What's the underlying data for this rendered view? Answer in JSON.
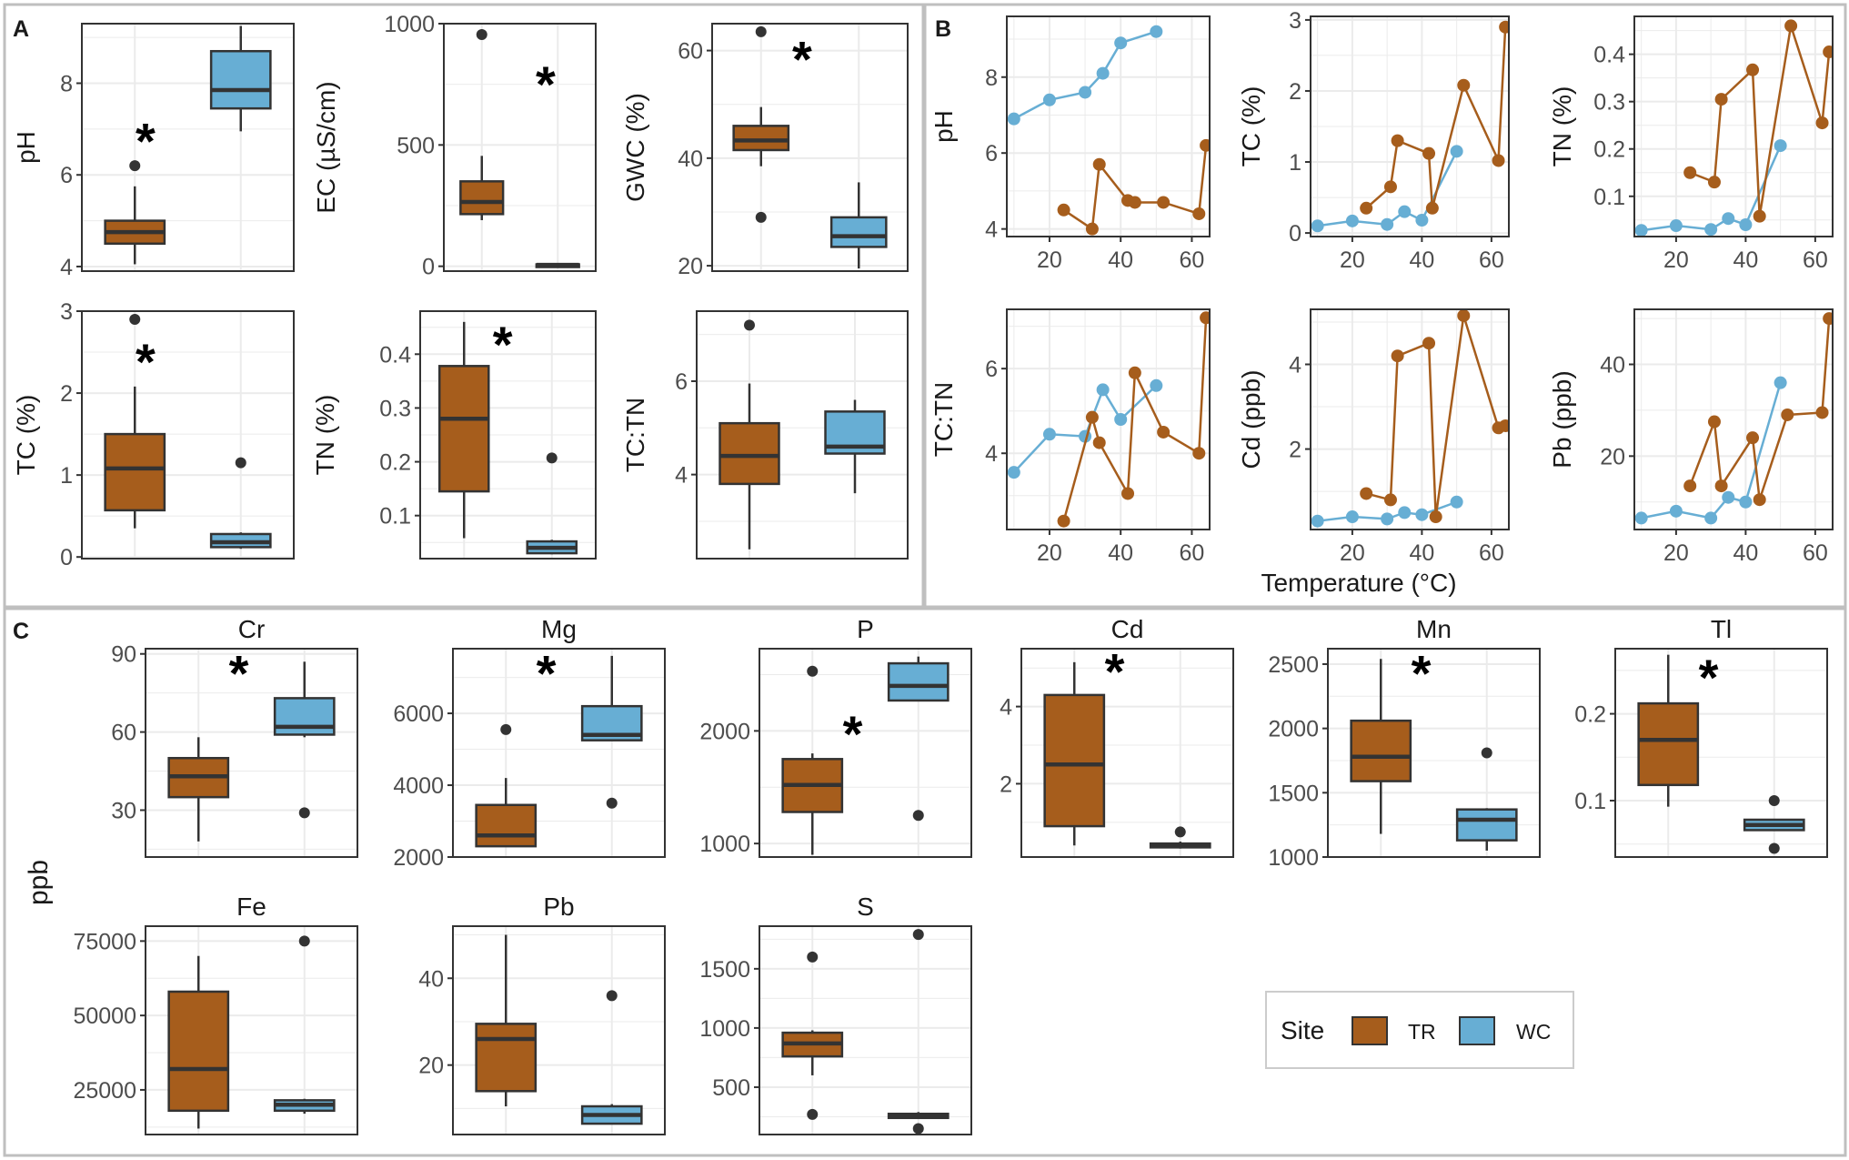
{
  "colors": {
    "TR": "#A65D1C",
    "WC": "#67AED4",
    "panel_border": "#333333",
    "grid": "#EBEBEB",
    "box_outline": "#333333",
    "text": "#1a1a1a",
    "axis_text": "#4D4D4D",
    "frame": "#BFBFBF"
  },
  "panel_labels": {
    "A": "A",
    "B": "B",
    "C": "C"
  },
  "shared_labels": {
    "ppb": "ppb",
    "temperature": "Temperature (°C)"
  },
  "legend": {
    "title": "Site",
    "items": [
      {
        "key": "TR",
        "label": "TR"
      },
      {
        "key": "WC",
        "label": "WC"
      }
    ]
  },
  "chart_data": [
    {
      "id": "A-pH",
      "type": "box",
      "ylabel": "pH",
      "ylim": [
        3.9,
        9.3
      ],
      "yticks": [
        4,
        6,
        8
      ],
      "significant": true,
      "boxes": [
        {
          "site": "TR",
          "min": 4.05,
          "q1": 4.5,
          "median": 4.75,
          "q3": 5.0,
          "max": 5.75,
          "outliers": [
            6.2
          ]
        },
        {
          "site": "WC",
          "min": 6.95,
          "q1": 7.45,
          "median": 7.85,
          "q3": 8.7,
          "max": 9.25,
          "outliers": []
        }
      ]
    },
    {
      "id": "A-EC",
      "type": "box",
      "ylabel": "EC (µS/cm)",
      "ylim": [
        -20,
        1000
      ],
      "yticks": [
        0,
        500,
        1000
      ],
      "significant": true,
      "boxes": [
        {
          "site": "TR",
          "min": 190,
          "q1": 215,
          "median": 265,
          "q3": 350,
          "max": 455,
          "outliers": [
            955
          ]
        },
        {
          "site": "WC",
          "min": 2,
          "q1": 4,
          "median": 6,
          "q3": 8,
          "max": 10,
          "outliers": []
        }
      ]
    },
    {
      "id": "A-GWC",
      "type": "box",
      "ylabel": "GWC (%)",
      "ylim": [
        19,
        65
      ],
      "yticks": [
        20,
        40,
        60
      ],
      "significant": true,
      "boxes": [
        {
          "site": "TR",
          "min": 38.5,
          "q1": 41.5,
          "median": 43.3,
          "q3": 46.0,
          "max": 49.5,
          "outliers": [
            63.5,
            29.0
          ]
        },
        {
          "site": "WC",
          "min": 19.5,
          "q1": 23.5,
          "median": 25.5,
          "q3": 29.0,
          "max": 35.5,
          "outliers": []
        }
      ]
    },
    {
      "id": "A-TC",
      "type": "box",
      "ylabel": "TC (%)",
      "ylim": [
        -0.02,
        3.0
      ],
      "yticks": [
        0,
        1,
        2,
        3
      ],
      "significant": true,
      "boxes": [
        {
          "site": "TR",
          "min": 0.35,
          "q1": 0.57,
          "median": 1.08,
          "q3": 1.5,
          "max": 2.08,
          "outliers": [
            2.9
          ]
        },
        {
          "site": "WC",
          "min": 0.1,
          "q1": 0.12,
          "median": 0.18,
          "q3": 0.28,
          "max": 0.3,
          "outliers": [
            1.15
          ]
        }
      ]
    },
    {
      "id": "A-TN",
      "type": "box",
      "ylabel": "TN (%)",
      "ylim": [
        0.02,
        0.48
      ],
      "yticks": [
        0.1,
        0.2,
        0.3,
        0.4
      ],
      "significant": true,
      "boxes": [
        {
          "site": "TR",
          "min": 0.058,
          "q1": 0.145,
          "median": 0.28,
          "q3": 0.378,
          "max": 0.46,
          "outliers": []
        },
        {
          "site": "WC",
          "min": 0.028,
          "q1": 0.03,
          "median": 0.04,
          "q3": 0.052,
          "max": 0.055,
          "outliers": [
            0.207
          ]
        }
      ]
    },
    {
      "id": "A-TCTN",
      "type": "box",
      "ylabel": "TC:TN",
      "ylim": [
        2.2,
        7.5
      ],
      "yticks": [
        4,
        6
      ],
      "significant": false,
      "boxes": [
        {
          "site": "TR",
          "min": 2.4,
          "q1": 3.8,
          "median": 4.4,
          "q3": 5.1,
          "max": 5.95,
          "outliers": [
            7.2
          ]
        },
        {
          "site": "WC",
          "min": 3.6,
          "q1": 4.45,
          "median": 4.6,
          "q3": 5.35,
          "max": 5.6,
          "outliers": []
        }
      ]
    },
    {
      "id": "B-pH",
      "type": "line",
      "ylabel": "pH",
      "xlim": [
        8,
        65
      ],
      "ylim": [
        3.8,
        9.6
      ],
      "xticks": [
        20,
        40,
        60
      ],
      "yticks": [
        4,
        6,
        8
      ],
      "series": [
        {
          "name": "WC",
          "x": [
            10,
            20,
            30,
            35,
            40,
            50
          ],
          "y": [
            6.9,
            7.4,
            7.6,
            8.1,
            8.9,
            9.2
          ]
        },
        {
          "name": "TR",
          "x": [
            24,
            32,
            34,
            42,
            44,
            52,
            62,
            64
          ],
          "y": [
            4.5,
            4.0,
            5.7,
            4.75,
            4.7,
            4.7,
            4.4,
            6.2
          ]
        }
      ]
    },
    {
      "id": "B-TC",
      "type": "line",
      "ylabel": "TC (%)",
      "xlim": [
        8,
        65
      ],
      "ylim": [
        -0.05,
        3.05
      ],
      "xticks": [
        20,
        40,
        60
      ],
      "yticks": [
        0,
        1,
        2,
        3
      ],
      "series": [
        {
          "name": "WC",
          "x": [
            10,
            20,
            30,
            35,
            40,
            50
          ],
          "y": [
            0.1,
            0.17,
            0.12,
            0.3,
            0.18,
            1.15
          ]
        },
        {
          "name": "TR",
          "x": [
            24,
            31,
            33,
            42,
            43,
            52,
            62,
            64
          ],
          "y": [
            0.35,
            0.65,
            1.3,
            1.12,
            0.35,
            2.08,
            1.02,
            2.9
          ]
        }
      ]
    },
    {
      "id": "B-TN",
      "type": "line",
      "ylabel": "TN (%)",
      "xlim": [
        8,
        65
      ],
      "ylim": [
        0.015,
        0.48
      ],
      "xticks": [
        20,
        40,
        60
      ],
      "yticks": [
        0.1,
        0.2,
        0.3,
        0.4
      ],
      "series": [
        {
          "name": "WC",
          "x": [
            10,
            20,
            30,
            35,
            40,
            50
          ],
          "y": [
            0.028,
            0.038,
            0.03,
            0.053,
            0.04,
            0.207
          ]
        },
        {
          "name": "TR",
          "x": [
            24,
            31,
            33,
            42,
            44,
            53,
            62,
            64
          ],
          "y": [
            0.15,
            0.13,
            0.305,
            0.367,
            0.058,
            0.46,
            0.255,
            0.405
          ]
        }
      ]
    },
    {
      "id": "B-TCTN",
      "type": "line",
      "ylabel": "TC:TN",
      "xlim": [
        8,
        65
      ],
      "ylim": [
        2.2,
        7.4
      ],
      "xticks": [
        20,
        40,
        60
      ],
      "yticks": [
        4,
        6
      ],
      "series": [
        {
          "name": "WC",
          "x": [
            10,
            20,
            30,
            35,
            40,
            50
          ],
          "y": [
            3.55,
            4.45,
            4.4,
            5.5,
            4.8,
            5.6
          ]
        },
        {
          "name": "TR",
          "x": [
            24,
            32,
            34,
            42,
            44,
            52,
            62,
            64
          ],
          "y": [
            2.4,
            4.85,
            4.25,
            3.05,
            5.9,
            4.5,
            4.0,
            7.2
          ]
        }
      ]
    },
    {
      "id": "B-Cd",
      "type": "line",
      "ylabel": "Cd (ppb)",
      "xlim": [
        8,
        65
      ],
      "ylim": [
        0.1,
        5.3
      ],
      "xticks": [
        20,
        40,
        60
      ],
      "yticks": [
        2,
        4
      ],
      "series": [
        {
          "name": "WC",
          "x": [
            10,
            20,
            30,
            35,
            40,
            50
          ],
          "y": [
            0.3,
            0.4,
            0.35,
            0.5,
            0.45,
            0.75
          ]
        },
        {
          "name": "TR",
          "x": [
            24,
            31,
            33,
            42,
            44,
            52,
            62,
            64
          ],
          "y": [
            0.95,
            0.8,
            4.2,
            4.5,
            0.4,
            5.15,
            2.5,
            2.55
          ]
        }
      ]
    },
    {
      "id": "B-Pb",
      "type": "line",
      "ylabel": "Pb (ppb)",
      "xlim": [
        8,
        65
      ],
      "ylim": [
        4,
        52
      ],
      "xticks": [
        20,
        40,
        60
      ],
      "yticks": [
        20,
        40
      ],
      "series": [
        {
          "name": "WC",
          "x": [
            10,
            20,
            30,
            35,
            40,
            50
          ],
          "y": [
            6.5,
            8.0,
            6.5,
            11.0,
            10.0,
            36.0
          ]
        },
        {
          "name": "TR",
          "x": [
            24,
            31,
            33,
            42,
            44,
            52,
            62,
            64
          ],
          "y": [
            13.5,
            27.5,
            13.5,
            24.0,
            10.5,
            29.0,
            29.5,
            50.0
          ]
        }
      ]
    },
    {
      "id": "C-Cr",
      "type": "box",
      "title": "Cr",
      "ylim": [
        12,
        92
      ],
      "yticks": [
        30,
        60,
        90
      ],
      "significant": true,
      "boxes": [
        {
          "site": "TR",
          "min": 18,
          "q1": 35,
          "median": 43,
          "q3": 50,
          "max": 58,
          "outliers": []
        },
        {
          "site": "WC",
          "min": 58,
          "q1": 59,
          "median": 62,
          "q3": 73,
          "max": 87,
          "outliers": [
            29
          ]
        }
      ]
    },
    {
      "id": "C-Mg",
      "type": "box",
      "title": "Mg",
      "ylim": [
        2000,
        7800
      ],
      "yticks": [
        2000,
        4000,
        6000
      ],
      "significant": true,
      "boxes": [
        {
          "site": "TR",
          "min": 2300,
          "q1": 2300,
          "median": 2600,
          "q3": 3450,
          "max": 4200,
          "outliers": [
            5550
          ]
        },
        {
          "site": "WC",
          "min": 5250,
          "q1": 5250,
          "median": 5400,
          "q3": 6200,
          "max": 7600,
          "outliers": [
            3500
          ]
        }
      ]
    },
    {
      "id": "C-P",
      "type": "box",
      "title": "P",
      "ylim": [
        880,
        2730
      ],
      "yticks": [
        1000,
        2000
      ],
      "significant": true,
      "boxes": [
        {
          "site": "TR",
          "min": 900,
          "q1": 1280,
          "median": 1520,
          "q3": 1750,
          "max": 1800,
          "outliers": [
            2530
          ]
        },
        {
          "site": "WC",
          "min": 2270,
          "q1": 2270,
          "median": 2400,
          "q3": 2600,
          "max": 2660,
          "outliers": [
            1250
          ]
        }
      ]
    },
    {
      "id": "C-Cd",
      "type": "box",
      "title": "Cd",
      "ylim": [
        0.1,
        5.5
      ],
      "yticks": [
        2,
        4
      ],
      "significant": true,
      "boxes": [
        {
          "site": "TR",
          "min": 0.4,
          "q1": 0.9,
          "median": 2.5,
          "q3": 4.3,
          "max": 5.15,
          "outliers": []
        },
        {
          "site": "WC",
          "min": 0.32,
          "q1": 0.35,
          "median": 0.4,
          "q3": 0.45,
          "max": 0.5,
          "outliers": [
            0.75
          ]
        }
      ]
    },
    {
      "id": "C-Mn",
      "type": "box",
      "title": "Mn",
      "ylim": [
        1000,
        2620
      ],
      "yticks": [
        1000,
        1500,
        2000,
        2500
      ],
      "significant": true,
      "boxes": [
        {
          "site": "TR",
          "min": 1180,
          "q1": 1590,
          "median": 1780,
          "q3": 2060,
          "max": 2540,
          "outliers": []
        },
        {
          "site": "WC",
          "min": 1050,
          "q1": 1130,
          "median": 1290,
          "q3": 1370,
          "max": 1380,
          "outliers": [
            1810
          ]
        }
      ]
    },
    {
      "id": "C-Tl",
      "type": "box",
      "title": "Tl",
      "ylim": [
        0.035,
        0.275
      ],
      "yticks": [
        0.1,
        0.2
      ],
      "significant": true,
      "boxes": [
        {
          "site": "TR",
          "min": 0.093,
          "q1": 0.118,
          "median": 0.17,
          "q3": 0.212,
          "max": 0.268,
          "outliers": []
        },
        {
          "site": "WC",
          "min": 0.066,
          "q1": 0.066,
          "median": 0.072,
          "q3": 0.078,
          "max": 0.078,
          "outliers": [
            0.1,
            0.045
          ]
        }
      ]
    },
    {
      "id": "C-Fe",
      "type": "box",
      "title": "Fe",
      "ylim": [
        10000,
        80000
      ],
      "yticks": [
        25000,
        50000,
        75000
      ],
      "significant": false,
      "boxes": [
        {
          "site": "TR",
          "min": 12000,
          "q1": 18000,
          "median": 32000,
          "q3": 58000,
          "max": 70000,
          "outliers": []
        },
        {
          "site": "WC",
          "min": 17000,
          "q1": 18000,
          "median": 20000,
          "q3": 21500,
          "max": 22000,
          "outliers": [
            75000
          ]
        }
      ]
    },
    {
      "id": "C-Pb",
      "type": "box",
      "title": "Pb",
      "ylim": [
        4,
        52
      ],
      "yticks": [
        20,
        40
      ],
      "significant": false,
      "boxes": [
        {
          "site": "TR",
          "min": 10.5,
          "q1": 14,
          "median": 26,
          "q3": 29.5,
          "max": 50,
          "outliers": []
        },
        {
          "site": "WC",
          "min": 6.5,
          "q1": 6.5,
          "median": 8.5,
          "q3": 10.5,
          "max": 11,
          "outliers": [
            36
          ]
        }
      ]
    },
    {
      "id": "C-S",
      "type": "box",
      "title": "S",
      "ylim": [
        100,
        1860
      ],
      "yticks": [
        500,
        1000,
        1500
      ],
      "significant": false,
      "boxes": [
        {
          "site": "TR",
          "min": 600,
          "q1": 760,
          "median": 870,
          "q3": 960,
          "max": 980,
          "outliers": [
            1600,
            270
          ]
        },
        {
          "site": "WC",
          "min": 235,
          "q1": 240,
          "median": 260,
          "q3": 275,
          "max": 290,
          "outliers": [
            1790,
            150
          ]
        }
      ]
    }
  ]
}
